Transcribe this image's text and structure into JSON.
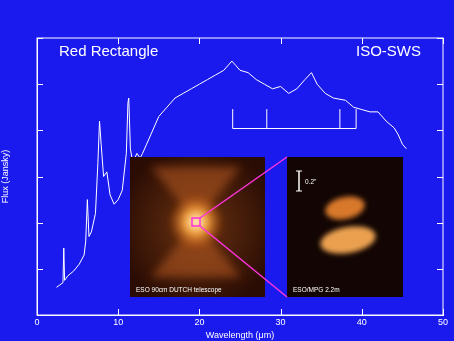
{
  "chart_data": {
    "type": "line",
    "title": "Red Rectangle",
    "subtitle": "ISO-SWS",
    "x_label": "Wavelength (μm)",
    "y_label": "Flux (Jansky)",
    "x": [
      2.4,
      2.8,
      3.2,
      3.3,
      3.4,
      3.8,
      4.5,
      5.2,
      5.8,
      6.0,
      6.2,
      6.4,
      6.7,
      7.2,
      7.5,
      7.7,
      7.9,
      8.2,
      8.6,
      9.0,
      9.5,
      10.0,
      10.5,
      11.0,
      11.2,
      11.3,
      11.5,
      11.8,
      12.3,
      12.7,
      13.0,
      13.5,
      14.0,
      15.0,
      16.0,
      17.0,
      18.0,
      19.0,
      20.0,
      21.0,
      22.0,
      23.0,
      24.0,
      24.5,
      25.0,
      26.0,
      27.0,
      28.0,
      29.0,
      30.0,
      31.0,
      32.0,
      33.0,
      33.8,
      34.5,
      35.5,
      36.5,
      38.0,
      39.0,
      40.0,
      41.0,
      42.0,
      43.0,
      44.0,
      44.5,
      45.0,
      45.5
    ],
    "values": [
      0.6,
      0.65,
      0.7,
      1.45,
      0.75,
      0.85,
      0.95,
      1.1,
      1.3,
      1.6,
      2.5,
      1.7,
      1.8,
      2.2,
      3.3,
      4.2,
      3.7,
      3.0,
      3.1,
      2.6,
      2.4,
      2.5,
      2.7,
      3.5,
      4.6,
      4.7,
      3.6,
      3.3,
      3.5,
      3.4,
      3.5,
      3.7,
      3.9,
      4.3,
      4.5,
      4.7,
      4.8,
      4.9,
      5.0,
      5.1,
      5.2,
      5.3,
      5.5,
      5.4,
      5.3,
      5.25,
      5.1,
      5.0,
      4.9,
      4.95,
      4.8,
      4.9,
      5.1,
      5.25,
      5.0,
      4.8,
      4.7,
      4.65,
      4.5,
      4.45,
      4.4,
      4.4,
      4.2,
      4.05,
      3.9,
      3.7,
      3.6
    ],
    "color": "#ffffff",
    "xlim": [
      0,
      50
    ],
    "xticks": [
      0,
      10,
      20,
      30,
      40,
      50
    ],
    "ylim": [
      0,
      6
    ],
    "yticks": [
      0,
      1,
      2,
      3,
      4,
      5,
      6
    ],
    "tick_labels": "x",
    "grid": false,
    "feature_marks": {
      "x": [
        24.1,
        28.3,
        37.3,
        39.3
      ],
      "y": 4.04,
      "tick_top": 4.46
    },
    "insets": [
      {
        "label": "ESO 90cm DUTCH telescope"
      },
      {
        "label": "ESO/MPG 2.2m",
        "scale_bar": "0.2\""
      }
    ]
  }
}
